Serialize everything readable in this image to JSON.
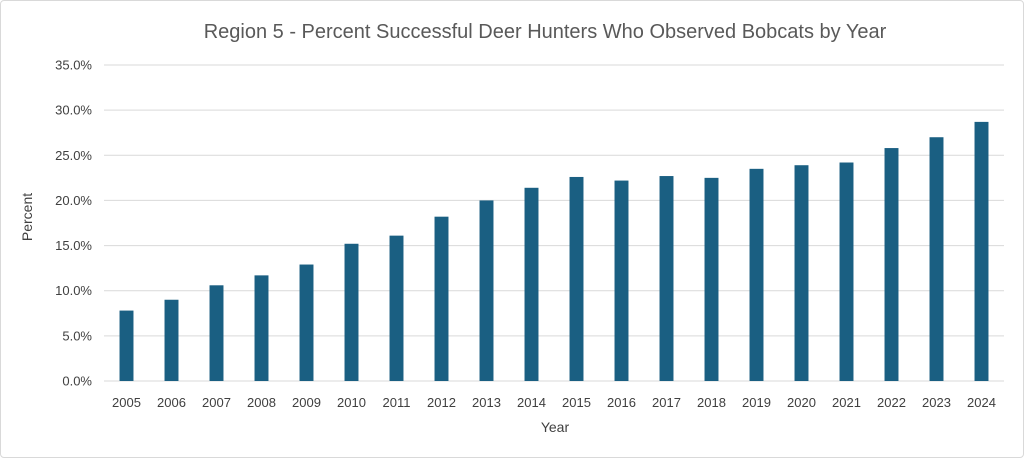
{
  "chart_data": {
    "type": "bar",
    "title": "Region 5 - Percent Successful Deer Hunters Who Observed Bobcats by Year",
    "xlabel": "Year",
    "ylabel": "Percent",
    "categories": [
      "2005",
      "2006",
      "2007",
      "2008",
      "2009",
      "2010",
      "2011",
      "2012",
      "2013",
      "2014",
      "2015",
      "2016",
      "2017",
      "2018",
      "2019",
      "2020",
      "2021",
      "2022",
      "2023",
      "2024"
    ],
    "values": [
      7.8,
      9.0,
      10.6,
      11.7,
      12.9,
      15.2,
      16.1,
      18.2,
      20.0,
      21.4,
      22.6,
      22.2,
      22.7,
      22.5,
      23.5,
      23.9,
      24.2,
      25.8,
      27.0,
      28.7
    ],
    "ylim": [
      0,
      35
    ],
    "yticks": [
      "0.0%",
      "5.0%",
      "10.0%",
      "15.0%",
      "20.0%",
      "25.0%",
      "30.0%",
      "35.0%"
    ],
    "grid": true,
    "legend": "none",
    "bar_color": "#1a5f82",
    "grid_color": "#d9d9d9"
  }
}
